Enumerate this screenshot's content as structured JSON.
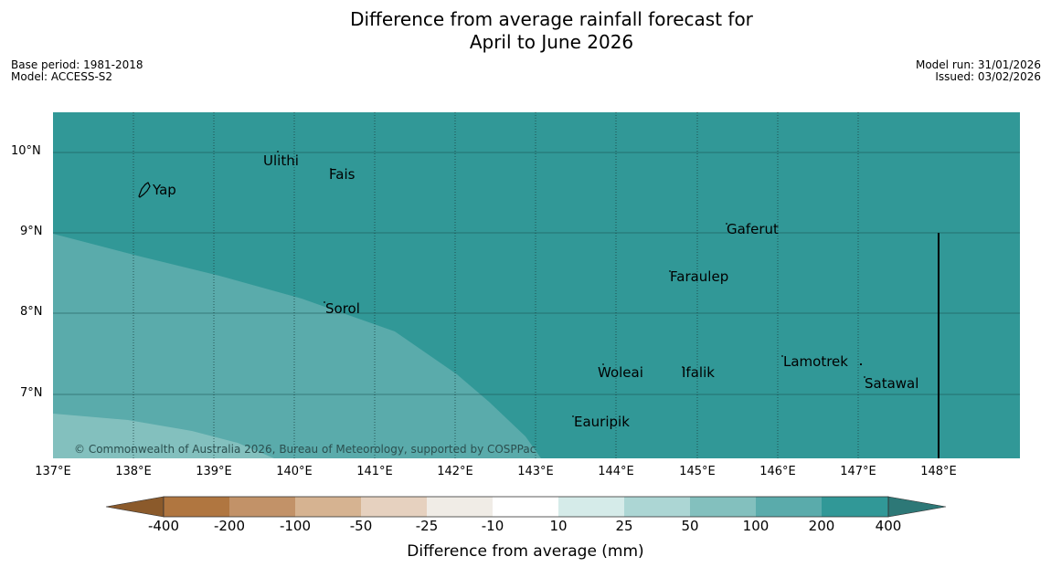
{
  "title_line1": "Difference from average rainfall forecast for",
  "title_line2": "April to June 2026",
  "base_period": "Base period: 1981-2018",
  "model": "Model: ACCESS-S2",
  "model_run": "Model run: 31/01/2026",
  "issued": "Issued: 03/02/2026",
  "copyright": "© Commonwealth of Australia 2026, Bureau of Meteorology, supported by COSPPac",
  "lat_labels": [
    "10°N",
    "9°N",
    "8°N",
    "7°N"
  ],
  "lon_labels": [
    "137°E",
    "138°E",
    "139°E",
    "140°E",
    "141°E",
    "142°E",
    "143°E",
    "144°E",
    "145°E",
    "146°E",
    "147°E",
    "148°E"
  ],
  "places": [
    "Ulithi",
    "Fais",
    "Yap",
    "Gaferut",
    "Faraulep",
    "Sorol",
    "Lamotrek",
    "Woleai",
    "Ifalik",
    "Satawal",
    "Eauripik"
  ],
  "colorbar": {
    "title": "Difference from average (mm)",
    "tick_labels": [
      "-400",
      "-200",
      "-100",
      "-50",
      "-25",
      "-10",
      "10",
      "25",
      "50",
      "100",
      "200",
      "400"
    ],
    "colors": [
      "#8b5a2b",
      "#b07640",
      "#c29268",
      "#d6b391",
      "#e6d1bf",
      "#f0ece6",
      "#ffffff",
      "#d5ebe9",
      "#acd6d4",
      "#83c0be",
      "#5aabab",
      "#319897",
      "#2d7877"
    ]
  }
}
